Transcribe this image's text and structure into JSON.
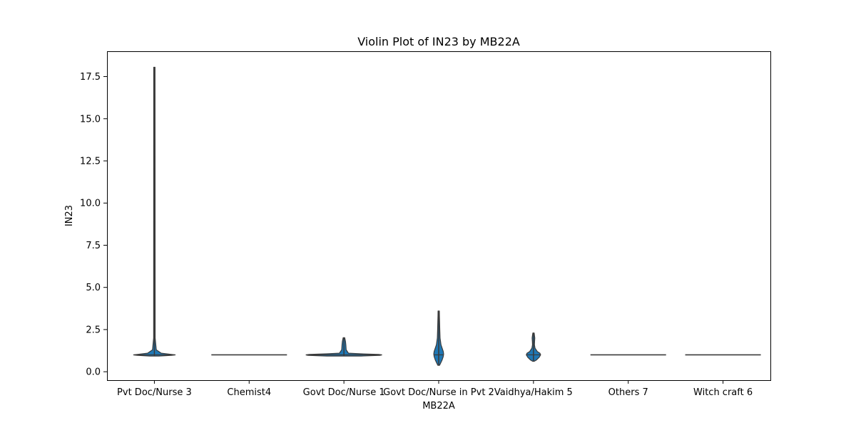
{
  "chart_data": {
    "type": "violin",
    "title": "Violin Plot of IN23 by MB22A",
    "xlabel": "MB22A",
    "ylabel": "IN23",
    "ylim": [
      -0.5,
      19.0
    ],
    "yticks": [
      0.0,
      2.5,
      5.0,
      7.5,
      10.0,
      12.5,
      15.0,
      17.5
    ],
    "ytick_labels": [
      "0.0",
      "2.5",
      "5.0",
      "7.5",
      "10.0",
      "12.5",
      "15.0",
      "17.5"
    ],
    "grid": false,
    "legend": "none",
    "colors": {
      "fill": "#1f77b4",
      "edge": "#3a3a3a",
      "frame": "#000000"
    },
    "categories": [
      "Pvt Doc/Nurse 3",
      "Chemist4",
      "Govt Doc/Nurse 1",
      "Govt Doc/Nurse in Pvt 2",
      "Vaidhya/Hakim 5",
      "Others 7",
      "Witch craft 6"
    ],
    "violins": [
      {
        "category": "Pvt Doc/Nurse 3",
        "min": 0.93,
        "max": 18.05,
        "median": 1.0,
        "profile": [
          [
            0.93,
            0.12
          ],
          [
            0.97,
            0.45
          ],
          [
            1.0,
            0.55
          ],
          [
            1.03,
            0.45
          ],
          [
            1.1,
            0.18
          ],
          [
            1.3,
            0.05
          ],
          [
            2.0,
            0.02
          ],
          [
            18.05,
            0.015
          ]
        ]
      },
      {
        "category": "Chemist4",
        "min": 1.0,
        "max": 1.0,
        "median": 1.0,
        "flat": true
      },
      {
        "category": "Govt Doc/Nurse 1",
        "min": 0.93,
        "max": 2.02,
        "median": 1.0,
        "profile": [
          [
            0.93,
            0.45
          ],
          [
            0.97,
            0.95
          ],
          [
            1.0,
            1.0
          ],
          [
            1.03,
            0.92
          ],
          [
            1.06,
            0.45
          ],
          [
            1.1,
            0.12
          ],
          [
            1.3,
            0.06
          ],
          [
            1.6,
            0.05
          ],
          [
            1.8,
            0.04
          ],
          [
            2.02,
            0.02
          ]
        ]
      },
      {
        "category": "Govt Doc/Nurse in Pvt 2",
        "min": 0.38,
        "max": 3.6,
        "median": 1.0,
        "profile": [
          [
            0.38,
            0.02
          ],
          [
            0.5,
            0.05
          ],
          [
            0.7,
            0.09
          ],
          [
            0.9,
            0.12
          ],
          [
            1.05,
            0.13
          ],
          [
            1.2,
            0.12
          ],
          [
            1.4,
            0.09
          ],
          [
            1.6,
            0.06
          ],
          [
            2.0,
            0.035
          ],
          [
            2.5,
            0.028
          ],
          [
            3.0,
            0.022
          ],
          [
            3.3,
            0.018
          ],
          [
            3.6,
            0.012
          ]
        ]
      },
      {
        "category": "Vaidhya/Hakim 5",
        "min": 0.62,
        "max": 2.3,
        "median": 1.0,
        "profile": [
          [
            0.62,
            0.02
          ],
          [
            0.7,
            0.08
          ],
          [
            0.85,
            0.15
          ],
          [
            1.0,
            0.19
          ],
          [
            1.1,
            0.17
          ],
          [
            1.2,
            0.1
          ],
          [
            1.4,
            0.04
          ],
          [
            1.6,
            0.025
          ],
          [
            1.8,
            0.03
          ],
          [
            2.0,
            0.035
          ],
          [
            2.1,
            0.03
          ],
          [
            2.3,
            0.01
          ]
        ]
      },
      {
        "category": "Others 7",
        "min": 1.0,
        "max": 1.0,
        "median": 1.0,
        "flat": true
      },
      {
        "category": "Witch craft 6",
        "min": 1.0,
        "max": 1.0,
        "median": 1.0,
        "flat": true
      }
    ]
  }
}
